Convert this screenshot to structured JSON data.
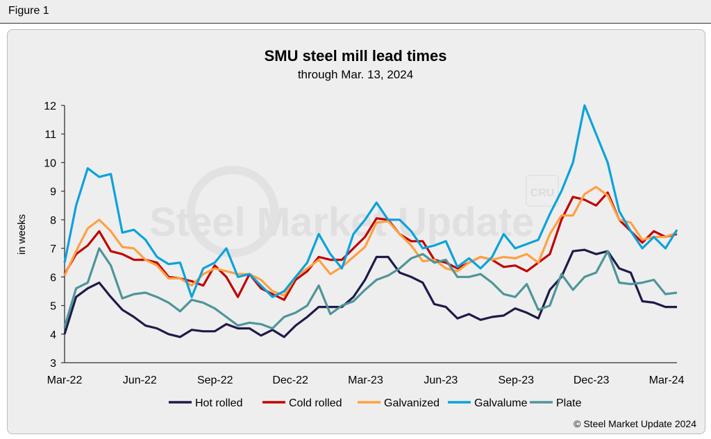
{
  "figure_label": "Figure 1",
  "copyright": "© Steel Market Update 2024",
  "watermark": {
    "text": "Steel Market Update",
    "badge": "CRU"
  },
  "chart_data": {
    "type": "line",
    "title": "SMU steel mill lead times",
    "subtitle": "through Mar. 13, 2024",
    "xlabel": "",
    "ylabel": "in weeks",
    "ylim": [
      3,
      12
    ],
    "yticks": [
      3,
      4,
      5,
      6,
      7,
      8,
      9,
      10,
      11,
      12
    ],
    "xtick_labels": [
      "Mar-22",
      "Jun-22",
      "Sep-22",
      "Dec-22",
      "Mar-23",
      "Jun-23",
      "Sep-23",
      "Dec-23",
      "Mar-24"
    ],
    "x_note": "biweekly observations, Mar-22 through Mar-24",
    "grid": false,
    "legend": "bottom",
    "series": [
      {
        "name": "Hot rolled",
        "color": "#1f1a4a",
        "values": [
          4.0,
          5.3,
          5.6,
          5.8,
          5.3,
          4.85,
          4.6,
          4.3,
          4.2,
          4.0,
          3.9,
          4.15,
          4.1,
          4.1,
          4.35,
          4.2,
          4.2,
          3.95,
          4.15,
          3.9,
          4.3,
          4.6,
          4.95,
          4.95,
          4.95,
          5.3,
          5.9,
          6.7,
          6.7,
          6.15,
          6.0,
          5.8,
          5.05,
          4.95,
          4.55,
          4.7,
          4.5,
          4.6,
          4.65,
          4.9,
          4.75,
          4.55,
          5.55,
          6.0,
          6.9,
          6.95,
          6.8,
          6.9,
          6.3,
          6.15,
          5.15,
          5.1,
          4.95,
          4.95
        ]
      },
      {
        "name": "Cold rolled",
        "color": "#c00000",
        "values": [
          6.1,
          6.8,
          7.1,
          7.6,
          6.9,
          6.8,
          6.6,
          6.6,
          6.5,
          6.0,
          5.95,
          5.85,
          5.7,
          6.4,
          6.0,
          5.3,
          6.1,
          5.6,
          5.4,
          5.2,
          5.9,
          6.2,
          6.7,
          6.6,
          6.6,
          7.0,
          7.4,
          8.05,
          8.0,
          7.5,
          7.25,
          7.25,
          6.6,
          6.5,
          6.3,
          6.5,
          6.7,
          6.6,
          6.35,
          6.4,
          6.2,
          6.5,
          6.8,
          8.0,
          8.8,
          8.7,
          8.5,
          8.95,
          8.0,
          7.6,
          7.2,
          7.6,
          7.4,
          7.5
        ]
      },
      {
        "name": "Galvanized",
        "color": "#ffa040",
        "values": [
          6.05,
          6.9,
          7.7,
          8.0,
          7.6,
          7.05,
          7.0,
          6.6,
          6.4,
          5.95,
          5.95,
          5.7,
          6.1,
          6.3,
          6.2,
          6.1,
          6.1,
          5.9,
          5.5,
          5.35,
          6.0,
          6.3,
          6.6,
          6.1,
          6.35,
          6.7,
          7.05,
          7.9,
          7.95,
          7.5,
          7.1,
          6.55,
          6.6,
          6.3,
          6.2,
          6.5,
          6.7,
          6.6,
          6.7,
          6.65,
          6.8,
          6.5,
          7.5,
          8.15,
          8.15,
          8.9,
          9.15,
          8.85,
          8.0,
          7.9,
          7.3,
          7.4,
          7.4,
          7.55
        ]
      },
      {
        "name": "Galvalume",
        "color": "#0aa2dc",
        "values": [
          6.5,
          8.5,
          9.8,
          9.5,
          9.6,
          7.55,
          7.65,
          7.3,
          6.7,
          6.45,
          6.5,
          5.3,
          6.3,
          6.5,
          7.0,
          6.0,
          6.1,
          5.7,
          5.3,
          5.5,
          6.0,
          6.5,
          7.5,
          6.8,
          6.3,
          7.5,
          8.0,
          8.6,
          8.0,
          8.0,
          7.6,
          7.0,
          7.1,
          7.25,
          6.35,
          6.65,
          6.3,
          6.7,
          7.5,
          7.0,
          7.15,
          7.3,
          8.2,
          9.0,
          10.0,
          12.0,
          11.0,
          10.0,
          8.3,
          7.6,
          7.0,
          7.4,
          7.0,
          7.65
        ]
      },
      {
        "name": "Plate",
        "color": "#4f9598",
        "values": [
          4.25,
          5.6,
          5.8,
          7.0,
          6.4,
          5.25,
          5.4,
          5.45,
          5.3,
          5.1,
          4.8,
          5.2,
          5.1,
          4.9,
          4.6,
          4.3,
          4.4,
          4.35,
          4.2,
          4.6,
          4.75,
          5.0,
          5.7,
          4.7,
          5.0,
          5.15,
          5.55,
          5.9,
          6.05,
          6.3,
          6.65,
          6.8,
          6.5,
          6.6,
          6.0,
          6.0,
          6.1,
          5.8,
          5.4,
          5.3,
          5.75,
          4.85,
          5.0,
          6.1,
          5.55,
          6.0,
          6.15,
          6.9,
          5.8,
          5.75,
          5.8,
          5.9,
          5.4,
          5.45
        ]
      }
    ]
  }
}
